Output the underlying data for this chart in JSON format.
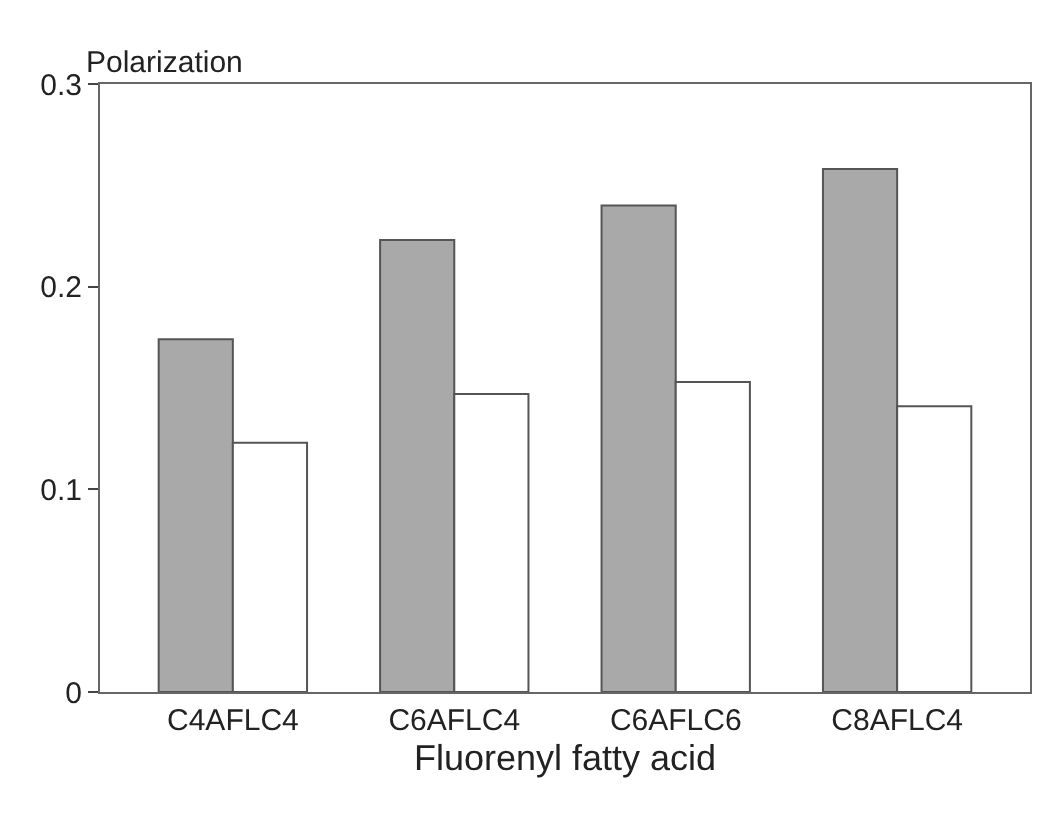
{
  "chart_data": {
    "type": "bar",
    "ylabel": "Polarization",
    "xlabel": "Fluorenyl fatty acid",
    "categories": [
      "C4AFLC4",
      "C6AFLC4",
      "C6AFLC6",
      "C8AFLC4"
    ],
    "series": [
      {
        "color": "#a9a9a9",
        "values": [
          0.174,
          0.223,
          0.24,
          0.258
        ]
      },
      {
        "color": "#ffffff",
        "values": [
          0.123,
          0.147,
          0.153,
          0.141
        ]
      }
    ],
    "ylim": [
      0,
      0.3
    ],
    "yticks": [
      0,
      0.1,
      0.2,
      0.3
    ]
  }
}
